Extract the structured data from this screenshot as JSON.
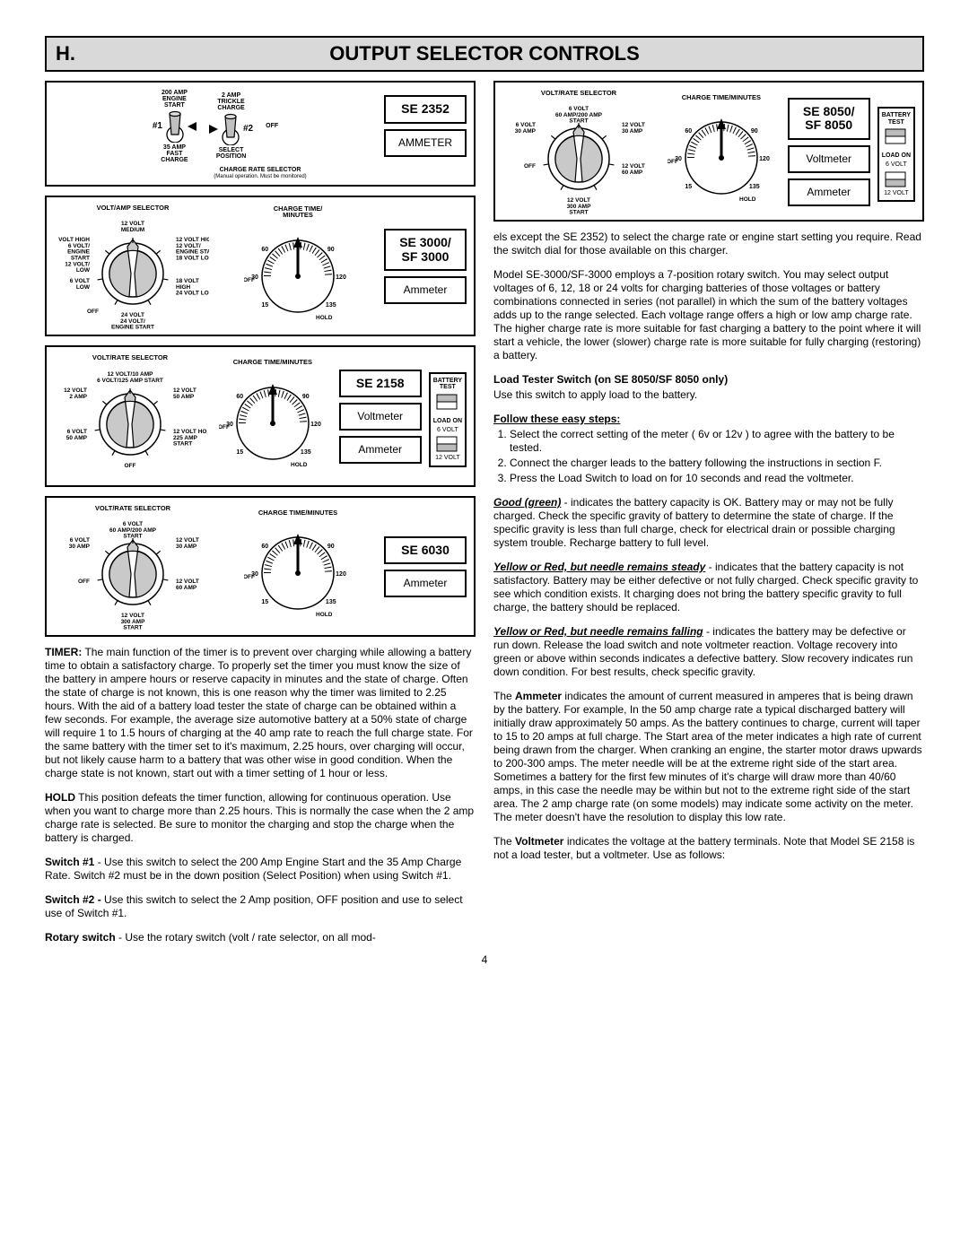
{
  "header": {
    "section_id": "H.",
    "title": "OUTPUT SELECTOR CONTROLS"
  },
  "panels": {
    "se2352": {
      "model1": "SE 2352",
      "meter": "AMMETER",
      "switch1_top": "200 AMP\nENGINE\nSTART",
      "switch1_num": "#1",
      "switch1_bot": "35 AMP\nFAST\nCHARGE",
      "switch2_top": "2 AMP\nTRICKLE\nCHARGE",
      "switch2_num": "#2",
      "switch2_bot": "SELECT\nPOSITION",
      "off": "OFF",
      "bottom_label": "CHARGE RATE SELECTOR",
      "bottom_sub": "(Manual operation. Must be monitored)"
    },
    "se3000": {
      "model1": "SE 3000/",
      "model2": "SF 3000",
      "meter": "Ammeter",
      "volt_title": "VOLT/AMP SELECTOR",
      "time_title": "CHARGE TIME/\nMINUTES",
      "time_marks": [
        "15",
        "30",
        "60",
        "90",
        "120",
        "135"
      ],
      "hold": "HOLD",
      "off": "OFF",
      "volt_labels": {
        "top": "12 VOLT\nMEDIUM",
        "tr": "12 VOLT HIGH\n12 VOLT/\nENGINE START\n18 VOLT LOW",
        "tl": "6 VOLT HIGH\n6 VOLT/\nENGINE\nSTART\n12 VOLT/\nLOW",
        "r": "18 VOLT\nHIGH\n24 VOLT LOW",
        "l": "6 VOLT\nLOW",
        "bl": "OFF",
        "b": "24 VOLT\n24 VOLT/\nENGINE START"
      }
    },
    "se2158": {
      "model1": "SE 2158",
      "meter1": "Voltmeter",
      "meter2": "Ammeter",
      "volt_title": "VOLT/RATE SELECTOR",
      "time_title": "CHARGE TIME/MINUTES",
      "time_marks": [
        "15",
        "30",
        "60",
        "90",
        "120",
        "135"
      ],
      "hold": "HOLD",
      "off": "OFF",
      "batt": {
        "title": "BATTERY\nTEST",
        "load": "LOAD ON",
        "v6": "6 VOLT",
        "v12": "12 VOLT"
      },
      "volt_labels": {
        "top": "12 VOLT/10 AMP\n6 VOLT/125 AMP START",
        "tr": "12 VOLT\n50 AMP",
        "tl": "12 VOLT\n2 AMP",
        "r": "12 VOLT HOLD\n225 AMP\nSTART",
        "l": "6 VOLT\n50 AMP",
        "b": "OFF"
      }
    },
    "se6030": {
      "model1": "SE 6030",
      "meter": "Ammeter",
      "volt_title": "VOLT/RATE SELECTOR",
      "time_title": "CHARGE TIME/MINUTES",
      "time_marks": [
        "15",
        "30",
        "60",
        "90",
        "120",
        "135"
      ],
      "hold": "HOLD",
      "off": "OFF",
      "volt_labels": {
        "top": "6 VOLT\n60 AMP/200 AMP\nSTART",
        "tr": "12 VOLT\n30 AMP",
        "tl": "6 VOLT\n30 AMP",
        "r": "12 VOLT\n60 AMP",
        "l": "OFF",
        "b": "12 VOLT\n300 AMP\nSTART"
      }
    },
    "se8050": {
      "model1": "SE 8050/",
      "model2": "SF 8050",
      "meter1": "Voltmeter",
      "meter2": "Ammeter",
      "volt_title": "VOLT/RATE SELECTOR",
      "time_title": "CHARGE TIME/MINUTES",
      "time_marks": [
        "15",
        "30",
        "60",
        "90",
        "120",
        "135"
      ],
      "hold": "HOLD",
      "off": "OFF",
      "batt": {
        "title": "BATTERY\nTEST",
        "load": "LOAD ON",
        "v6": "6 VOLT",
        "v12": "12 VOLT"
      },
      "volt_labels": {
        "top": "6 VOLT\n60 AMP/200 AMP\nSTART",
        "tr": "12 VOLT\n30 AMP",
        "tl": "6 VOLT\n30 AMP",
        "r": "12 VOLT\n60 AMP",
        "l": "OFF",
        "b": "12 VOLT\n300 AMP\nSTART"
      }
    }
  },
  "text": {
    "left": {
      "timer_lead": "TIMER:",
      "timer": " The main function of the timer is to prevent over charging while allowing a battery time to obtain a satisfactory charge. To properly set the timer you must know the size of the battery in ampere hours or reserve capacity in minutes and the state of charge. Often the state of charge is not known, this is one reason why the timer was limited to 2.25 hours. With the aid of a battery load tester the state of charge can be obtained within a few seconds. For example, the average size automotive battery at a 50% state of charge will require 1 to 1.5 hours of charging at the 40 amp rate to reach the full charge state. For the same battery with the timer set to it's maximum, 2.25 hours, over charging will occur, but not likely cause harm to a battery that was other wise in good condition. When the charge state is not known, start out with a timer setting of 1 hour or less.",
      "hold_lead": "HOLD",
      "hold": " This position defeats the timer function, allowing for continuous operation. Use when you want to charge more than 2.25 hours. This is normally the case when the 2 amp charge rate is selected. Be sure to monitor the charging and stop the charge when the battery is charged.",
      "sw1_lead": "Switch #1",
      "sw1": " - Use this switch to select the 200 Amp Engine Start and the 35 Amp Charge Rate.  Switch #2 must be in the down position (Select Position) when using Switch #1.",
      "sw2_lead": "Switch #2 -",
      "sw2": " Use this switch to select the 2 Amp position, OFF position and use to select use of Switch #1.",
      "rs_lead": "Rotary switch",
      "rs": " - Use the rotary switch (volt / rate selector, on all mod-"
    },
    "right": {
      "cont": "els except the SE 2352) to select the charge rate or engine start setting you require. Read the switch dial for those available on this charger.",
      "model3000": "Model SE-3000/SF-3000 employs a 7-position rotary switch. You may select output voltages of 6, 12, 18 or 24 volts for charging batteries of those voltages or battery combinations connected in series (not parallel) in which the sum of the battery voltages adds up to the range selected. Each voltage range offers a high or low amp charge rate. The higher charge rate is more suitable for fast charging a battery to the point where it will start a vehicle, the lower (slower) charge rate is more suitable for fully charging (restoring) a battery.",
      "load_switch_head": "Load Tester Switch (on SE 8050/SF 8050 only)",
      "load_switch": "Use this switch to apply load to the battery.",
      "steps_head": "Follow these easy steps:",
      "step1": "Select the correct setting of the meter ( 6v or 12v ) to agree with the battery to be tested.",
      "step2": "Connect the charger leads to the battery following the instructions in section F.",
      "step3": "Press the Load Switch to load on for 10 seconds and read the voltmeter.",
      "good_lead": "Good (green)",
      "good": " - indicates the battery capacity is OK. Battery may or may not be fully charged. Check the specific gravity of battery to determine the state of charge. If the specific gravity is less than full charge, check for electrical drain or possible charging system trouble. Recharge battery to full level.",
      "steady_lead": "Yellow or Red, but needle remains steady",
      "steady": " - indicates that the battery capacity is not satisfactory. Battery may be either defective or not fully charged. Check specific gravity to see which condition exists. It charging does not bring the battery specific gravity to full charge, the battery should be replaced.",
      "falling_lead": "Yellow or Red, but needle remains falling",
      "falling": " - indicates the battery may be defective or run down. Release the load switch and note voltmeter reaction. Voltage recovery into green or above within seconds indicates a defective battery. Slow recovery indicates run down condition. For best results, check specific gravity.",
      "ammeter": "The <b>Ammeter</b> indicates the amount of current measured in amperes that is being drawn by the battery. For example, In the 50 amp charge rate a typical discharged battery will initially draw approximately 50 amps. As the battery continues to charge, current will taper to 15 to 20 amps at full charge. The Start area of the meter indicates a high rate of current being drawn from the charger. When cranking an engine, the starter motor draws upwards to 200-300 amps. The meter needle will be at the extreme right side of the start area. Sometimes a battery for the first few minutes of it's charge will draw more than 40/60 amps, in this case the needle may be within but not to the extreme right side of the start area. The 2 amp charge rate (on some models) may indicate some activity on the meter. The meter doesn't have the resolution to display this low rate.",
      "voltmeter": "The <b>Voltmeter</b> indicates the voltage at the battery terminals. Note    that Model SE 2158 is not a load tester, but a voltmeter. Use as         follows:"
    }
  },
  "page_number": "4"
}
